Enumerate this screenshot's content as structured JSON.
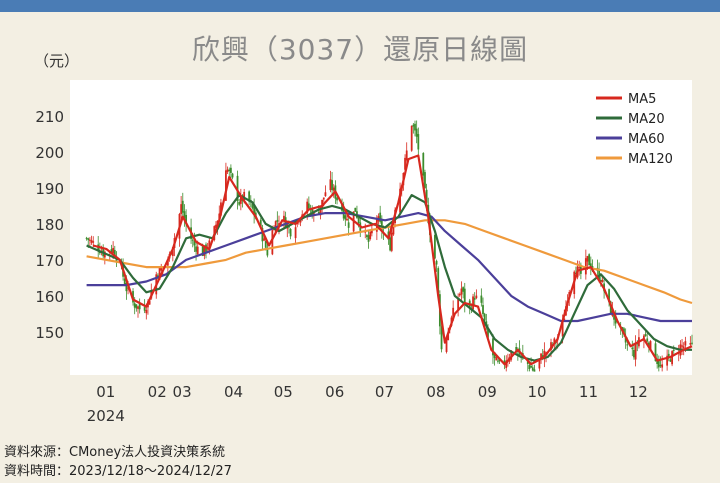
{
  "title": "欣興（3037）還原日線圖",
  "unit_label": "（元）",
  "footer": {
    "source": "資料來源：CMoney法人投資決策系統",
    "period": "資料時間：2023/12/18～2024/12/27"
  },
  "colors": {
    "up": "#d7281e",
    "down": "#3c8c2d",
    "ma5": "#d7281e",
    "ma20": "#2f6b3a",
    "ma60": "#4b3f9a",
    "ma120": "#ef9a3c",
    "background": "#f3efe3",
    "plot_background": "#ffffff",
    "topbar": "#4a7cb5"
  },
  "chart_data": {
    "type": "candlestick",
    "title": "欣興（3037）還原日線圖",
    "ylabel": "（元）",
    "ylim": [
      138,
      220
    ],
    "yticks": [
      150,
      160,
      170,
      180,
      190,
      200,
      210
    ],
    "grid": false,
    "legend_position": "top-right",
    "x_tick_labels": [
      "01",
      "02",
      "03",
      "04",
      "05",
      "06",
      "07",
      "08",
      "09",
      "10",
      "11",
      "12"
    ],
    "year_label": "2024",
    "month_ticks": [
      {
        "label": "01",
        "day": 14
      },
      {
        "label": "02",
        "day": 45
      },
      {
        "label": "03",
        "day": 60
      },
      {
        "label": "04",
        "day": 91
      },
      {
        "label": "05",
        "day": 121
      },
      {
        "label": "06",
        "day": 152
      },
      {
        "label": "07",
        "day": 182
      },
      {
        "label": "08",
        "day": 213
      },
      {
        "label": "09",
        "day": 244
      },
      {
        "label": "10",
        "day": 274
      },
      {
        "label": "11",
        "day": 305
      },
      {
        "label": "12",
        "day": 335
      }
    ],
    "date_range": [
      "2023/12/18",
      "2024/12/27"
    ],
    "close_path": [
      [
        0,
        176
      ],
      [
        6,
        174
      ],
      [
        10,
        172
      ],
      [
        16,
        173
      ],
      [
        20,
        169
      ],
      [
        24,
        162
      ],
      [
        28,
        158
      ],
      [
        33,
        156
      ],
      [
        37,
        158
      ],
      [
        42,
        166
      ],
      [
        46,
        168
      ],
      [
        50,
        171
      ],
      [
        54,
        178
      ],
      [
        57,
        185
      ],
      [
        61,
        178
      ],
      [
        65,
        174
      ],
      [
        70,
        172
      ],
      [
        75,
        175
      ],
      [
        80,
        183
      ],
      [
        84,
        196
      ],
      [
        88,
        192
      ],
      [
        92,
        186
      ],
      [
        96,
        188
      ],
      [
        100,
        184
      ],
      [
        105,
        178
      ],
      [
        109,
        172
      ],
      [
        113,
        180
      ],
      [
        118,
        182
      ],
      [
        123,
        178
      ],
      [
        128,
        182
      ],
      [
        133,
        185
      ],
      [
        138,
        182
      ],
      [
        142,
        186
      ],
      [
        146,
        192
      ],
      [
        150,
        188
      ],
      [
        154,
        184
      ],
      [
        158,
        180
      ],
      [
        162,
        184
      ],
      [
        166,
        178
      ],
      [
        170,
        175
      ],
      [
        175,
        182
      ],
      [
        180,
        176
      ],
      [
        183,
        174
      ],
      [
        186,
        185
      ],
      [
        190,
        192
      ],
      [
        193,
        200
      ],
      [
        196,
        208
      ],
      [
        199,
        204
      ],
      [
        203,
        192
      ],
      [
        207,
        178
      ],
      [
        211,
        168
      ],
      [
        214,
        145
      ],
      [
        218,
        150
      ],
      [
        222,
        157
      ],
      [
        226,
        162
      ],
      [
        230,
        155
      ],
      [
        234,
        160
      ],
      [
        238,
        157
      ],
      [
        242,
        148
      ],
      [
        246,
        142
      ],
      [
        250,
        140
      ],
      [
        254,
        143
      ],
      [
        258,
        146
      ],
      [
        262,
        143
      ],
      [
        266,
        141
      ],
      [
        270,
        139
      ],
      [
        274,
        143
      ],
      [
        278,
        145
      ],
      [
        282,
        147
      ],
      [
        286,
        149
      ],
      [
        290,
        160
      ],
      [
        294,
        168
      ],
      [
        298,
        166
      ],
      [
        302,
        170
      ],
      [
        306,
        167
      ],
      [
        310,
        165
      ],
      [
        314,
        158
      ],
      [
        318,
        154
      ],
      [
        322,
        150
      ],
      [
        326,
        146
      ],
      [
        330,
        144
      ],
      [
        334,
        150
      ],
      [
        338,
        148
      ],
      [
        342,
        144
      ],
      [
        346,
        140
      ],
      [
        350,
        142
      ],
      [
        354,
        144
      ],
      [
        358,
        146
      ],
      [
        362,
        146
      ],
      [
        365,
        146
      ]
    ],
    "series": [
      {
        "name": "MA5",
        "color": "#d7281e",
        "points": [
          [
            4,
            174
          ],
          [
            12,
            173
          ],
          [
            20,
            170
          ],
          [
            28,
            159
          ],
          [
            36,
            157
          ],
          [
            44,
            165
          ],
          [
            52,
            173
          ],
          [
            58,
            182
          ],
          [
            66,
            175
          ],
          [
            74,
            173
          ],
          [
            80,
            181
          ],
          [
            86,
            193
          ],
          [
            94,
            187
          ],
          [
            102,
            182
          ],
          [
            110,
            174
          ],
          [
            118,
            181
          ],
          [
            126,
            180
          ],
          [
            134,
            184
          ],
          [
            142,
            185
          ],
          [
            150,
            189
          ],
          [
            158,
            182
          ],
          [
            166,
            179
          ],
          [
            174,
            180
          ],
          [
            182,
            176
          ],
          [
            188,
            186
          ],
          [
            194,
            198
          ],
          [
            200,
            199
          ],
          [
            206,
            182
          ],
          [
            212,
            160
          ],
          [
            216,
            147
          ],
          [
            222,
            155
          ],
          [
            228,
            158
          ],
          [
            236,
            157
          ],
          [
            244,
            145
          ],
          [
            252,
            141
          ],
          [
            260,
            145
          ],
          [
            268,
            141
          ],
          [
            276,
            143
          ],
          [
            284,
            148
          ],
          [
            290,
            158
          ],
          [
            296,
            167
          ],
          [
            304,
            168
          ],
          [
            312,
            162
          ],
          [
            320,
            153
          ],
          [
            328,
            146
          ],
          [
            336,
            148
          ],
          [
            344,
            142
          ],
          [
            352,
            143
          ],
          [
            360,
            145
          ],
          [
            365,
            146
          ]
        ]
      },
      {
        "name": "MA20",
        "color": "#2f6b3a",
        "points": [
          [
            0,
            174
          ],
          [
            10,
            172
          ],
          [
            20,
            170
          ],
          [
            28,
            165
          ],
          [
            36,
            161
          ],
          [
            44,
            162
          ],
          [
            52,
            168
          ],
          [
            60,
            176
          ],
          [
            68,
            177
          ],
          [
            76,
            176
          ],
          [
            84,
            183
          ],
          [
            92,
            188
          ],
          [
            100,
            186
          ],
          [
            108,
            180
          ],
          [
            116,
            178
          ],
          [
            124,
            180
          ],
          [
            132,
            182
          ],
          [
            140,
            184
          ],
          [
            148,
            185
          ],
          [
            156,
            184
          ],
          [
            164,
            182
          ],
          [
            172,
            180
          ],
          [
            180,
            179
          ],
          [
            188,
            182
          ],
          [
            196,
            188
          ],
          [
            204,
            186
          ],
          [
            210,
            178
          ],
          [
            216,
            168
          ],
          [
            222,
            160
          ],
          [
            230,
            157
          ],
          [
            238,
            154
          ],
          [
            246,
            148
          ],
          [
            254,
            145
          ],
          [
            262,
            143
          ],
          [
            270,
            142
          ],
          [
            278,
            143
          ],
          [
            286,
            147
          ],
          [
            294,
            155
          ],
          [
            302,
            163
          ],
          [
            310,
            166
          ],
          [
            318,
            162
          ],
          [
            326,
            156
          ],
          [
            334,
            152
          ],
          [
            342,
            148
          ],
          [
            350,
            146
          ],
          [
            358,
            145
          ],
          [
            365,
            145
          ]
        ]
      },
      {
        "name": "MA60",
        "color": "#4b3f9a",
        "points": [
          [
            0,
            163
          ],
          [
            12,
            163
          ],
          [
            24,
            163
          ],
          [
            36,
            164
          ],
          [
            48,
            166
          ],
          [
            60,
            170
          ],
          [
            72,
            172
          ],
          [
            84,
            174
          ],
          [
            96,
            176
          ],
          [
            108,
            178
          ],
          [
            120,
            180
          ],
          [
            132,
            182
          ],
          [
            144,
            183
          ],
          [
            156,
            183
          ],
          [
            168,
            182
          ],
          [
            180,
            181
          ],
          [
            190,
            182
          ],
          [
            200,
            183
          ],
          [
            208,
            182
          ],
          [
            216,
            178
          ],
          [
            226,
            174
          ],
          [
            236,
            170
          ],
          [
            246,
            165
          ],
          [
            256,
            160
          ],
          [
            266,
            157
          ],
          [
            276,
            155
          ],
          [
            286,
            153
          ],
          [
            296,
            153
          ],
          [
            306,
            154
          ],
          [
            316,
            155
          ],
          [
            326,
            155
          ],
          [
            336,
            154
          ],
          [
            346,
            153
          ],
          [
            356,
            153
          ],
          [
            365,
            153
          ]
        ]
      },
      {
        "name": "MA120",
        "color": "#ef9a3c",
        "points": [
          [
            0,
            171
          ],
          [
            12,
            170
          ],
          [
            24,
            169
          ],
          [
            36,
            168
          ],
          [
            48,
            168
          ],
          [
            60,
            168
          ],
          [
            72,
            169
          ],
          [
            84,
            170
          ],
          [
            96,
            172
          ],
          [
            108,
            173
          ],
          [
            120,
            174
          ],
          [
            132,
            175
          ],
          [
            144,
            176
          ],
          [
            156,
            177
          ],
          [
            168,
            178
          ],
          [
            180,
            179
          ],
          [
            192,
            180
          ],
          [
            204,
            181
          ],
          [
            216,
            181
          ],
          [
            228,
            180
          ],
          [
            240,
            178
          ],
          [
            252,
            176
          ],
          [
            264,
            174
          ],
          [
            276,
            172
          ],
          [
            288,
            170
          ],
          [
            300,
            168
          ],
          [
            312,
            167
          ],
          [
            324,
            165
          ],
          [
            336,
            163
          ],
          [
            348,
            161
          ],
          [
            358,
            159
          ],
          [
            365,
            158
          ]
        ]
      }
    ]
  }
}
